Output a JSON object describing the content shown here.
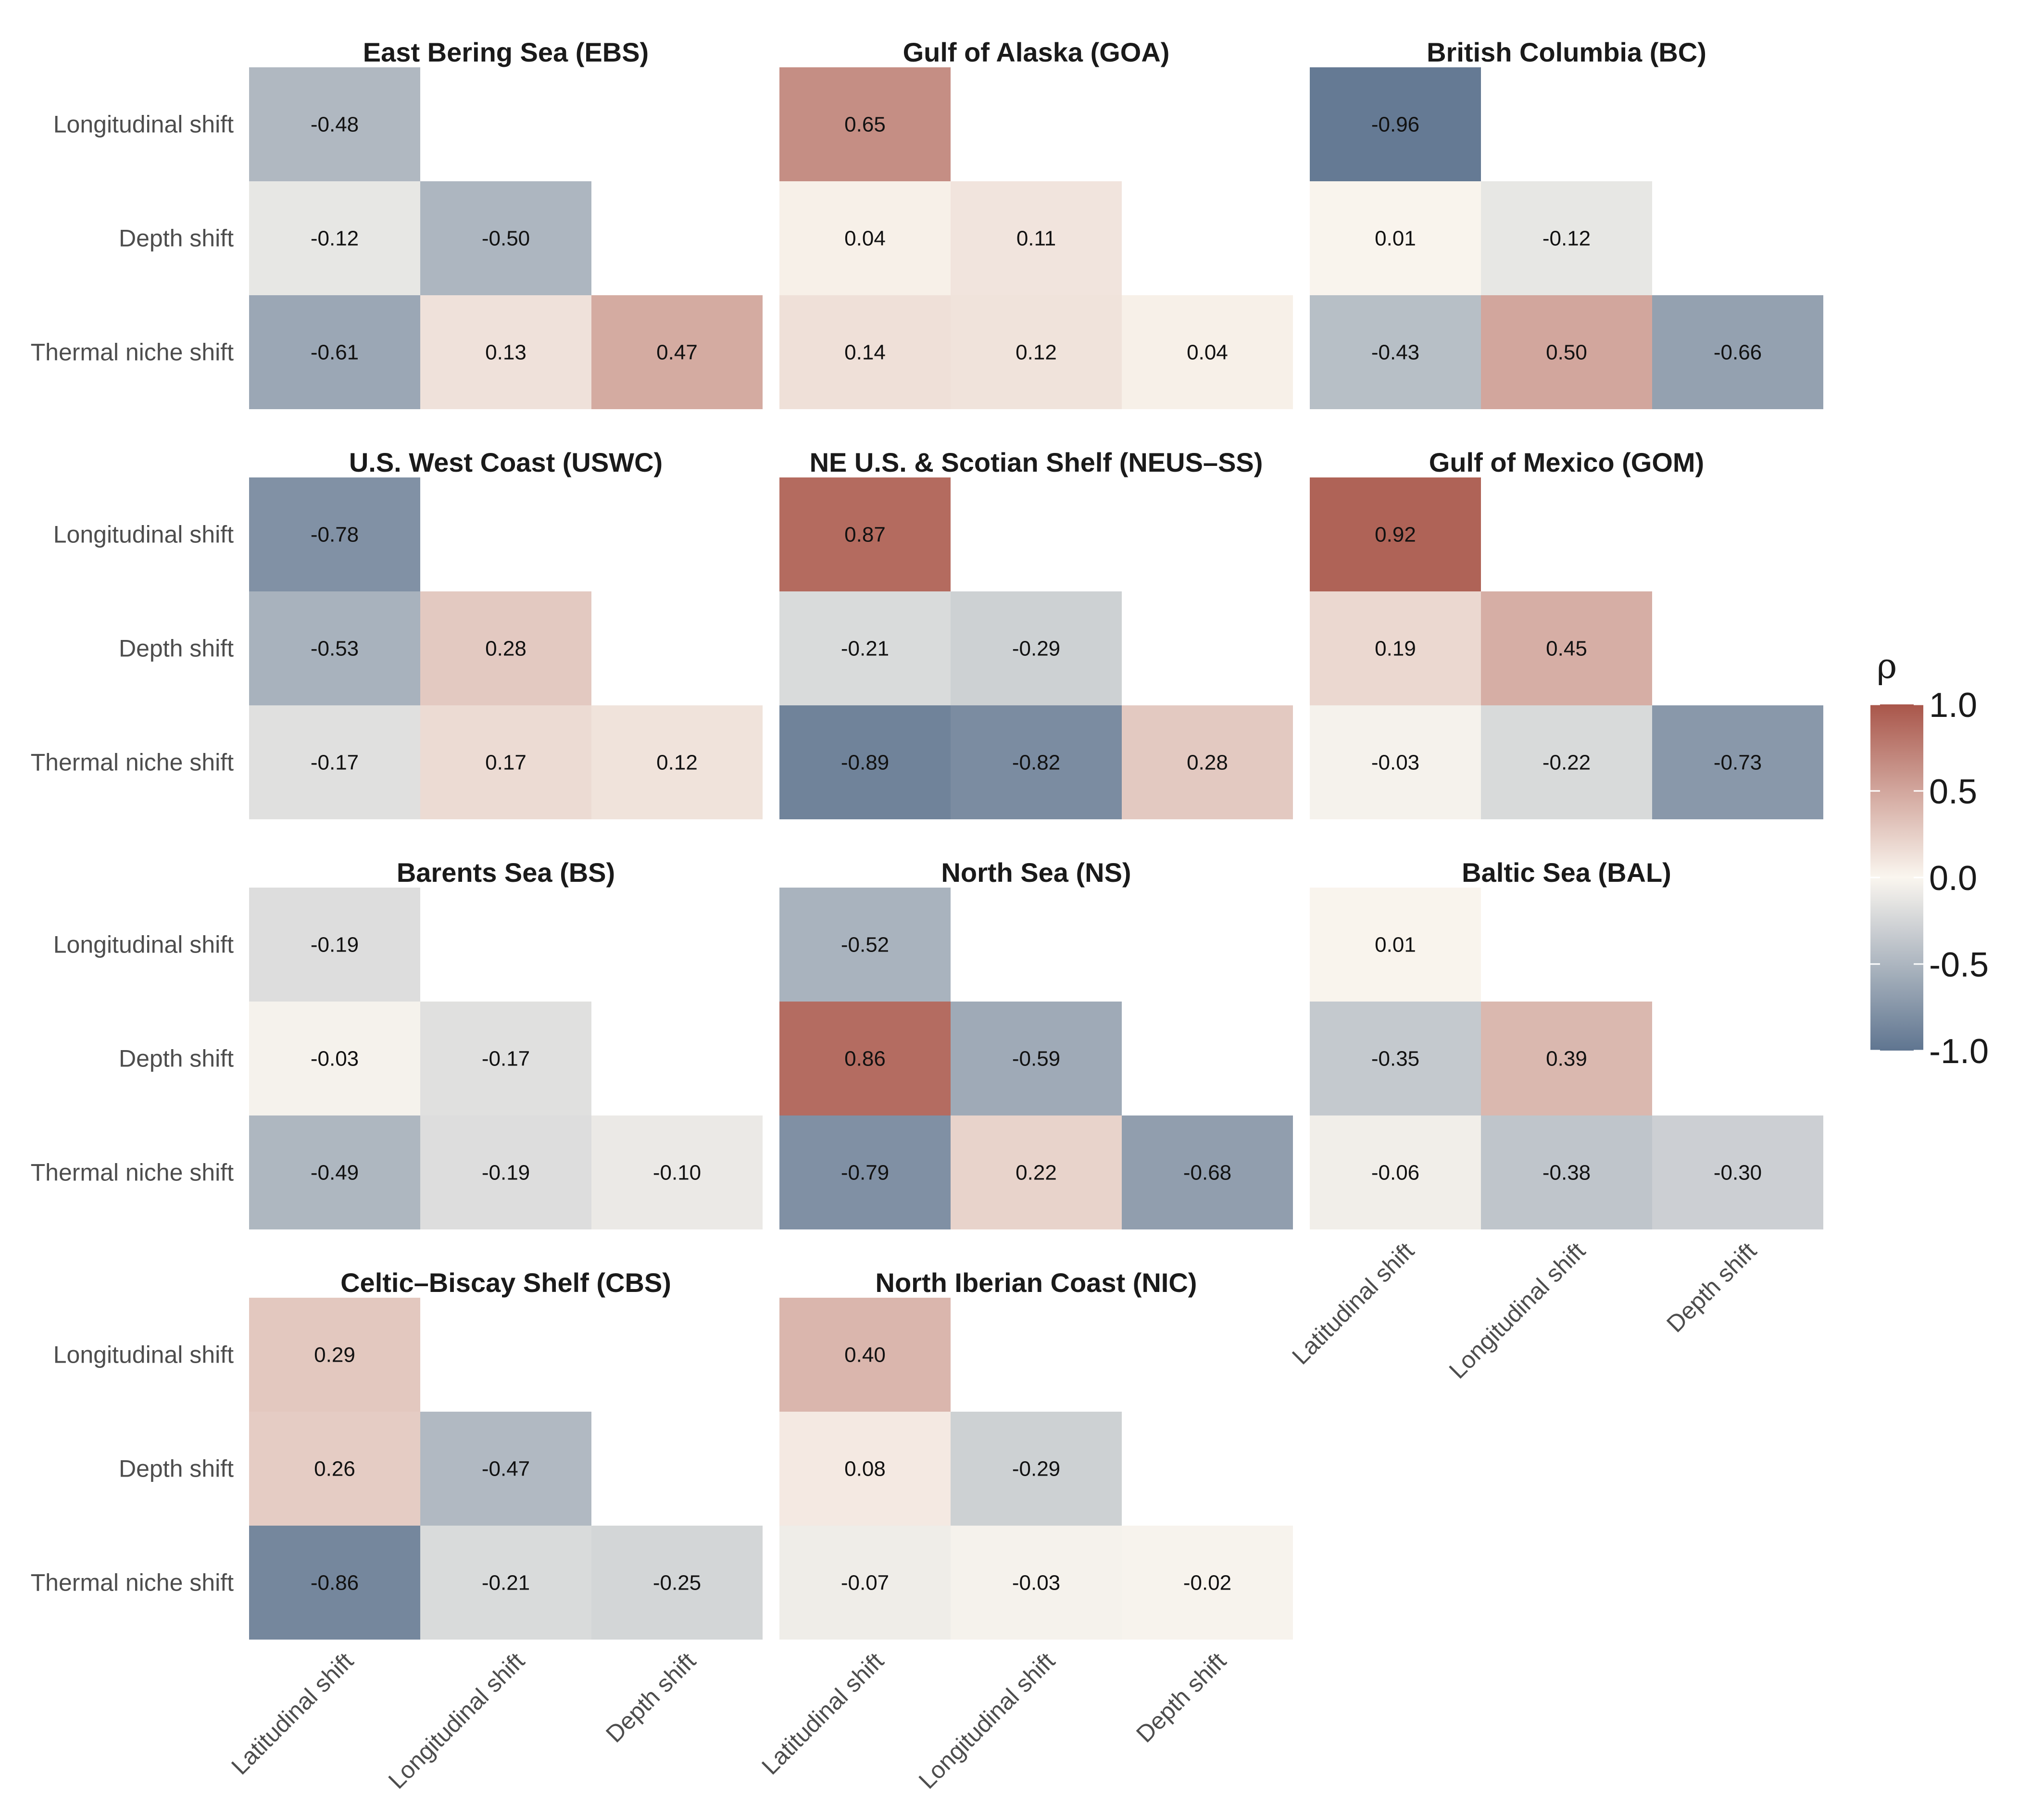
{
  "chart_data": {
    "type": "heatmap",
    "colorscale": {
      "low": "#5f7590",
      "mid": "#faf6ef",
      "high": "#a9564a",
      "range": [
        -1.0,
        1.0
      ]
    },
    "row_labels": [
      "Longitudinal shift",
      "Depth shift",
      "Thermal niche shift"
    ],
    "column_labels": [
      "Latitudinal shift",
      "Longitudinal shift",
      "Depth shift"
    ],
    "legend": {
      "title": "ρ",
      "ticks": [
        "1.0",
        "0.5",
        "0.0",
        "-0.5",
        "-1.0"
      ],
      "tick_values": [
        1.0,
        0.5,
        0.0,
        -0.5,
        -1.0
      ],
      "placement": "right"
    },
    "panels": [
      {
        "title": "East Bering Sea (EBS)",
        "values": [
          [
            -0.48
          ],
          [
            -0.12,
            -0.5
          ],
          [
            -0.61,
            0.13,
            0.47
          ]
        ],
        "labels": [
          [
            "-0.48"
          ],
          [
            "-0.12",
            "-0.50"
          ],
          [
            "-0.61",
            "0.13",
            "0.47"
          ]
        ]
      },
      {
        "title": "Gulf of Alaska (GOA)",
        "values": [
          [
            0.65
          ],
          [
            0.04,
            0.11
          ],
          [
            0.14,
            0.12,
            0.04
          ]
        ],
        "labels": [
          [
            "0.65"
          ],
          [
            "0.04",
            "0.11"
          ],
          [
            "0.14",
            "0.12",
            "0.04"
          ]
        ]
      },
      {
        "title": "British Columbia (BC)",
        "values": [
          [
            -0.96
          ],
          [
            0.01,
            -0.12
          ],
          [
            -0.43,
            0.5,
            -0.66
          ]
        ],
        "labels": [
          [
            "-0.96"
          ],
          [
            "0.01",
            "-0.12"
          ],
          [
            "-0.43",
            "0.50",
            "-0.66"
          ]
        ]
      },
      {
        "title": "U.S. West Coast (USWC)",
        "values": [
          [
            -0.78
          ],
          [
            -0.53,
            0.28
          ],
          [
            -0.17,
            0.17,
            0.12
          ]
        ],
        "labels": [
          [
            "-0.78"
          ],
          [
            "-0.53",
            "0.28"
          ],
          [
            "-0.17",
            "0.17",
            "0.12"
          ]
        ]
      },
      {
        "title": "NE U.S. & Scotian Shelf (NEUS–SS)",
        "values": [
          [
            0.87
          ],
          [
            -0.21,
            -0.29
          ],
          [
            -0.89,
            -0.82,
            0.28
          ]
        ],
        "labels": [
          [
            "0.87"
          ],
          [
            "-0.21",
            "-0.29"
          ],
          [
            "-0.89",
            "-0.82",
            "0.28"
          ]
        ]
      },
      {
        "title": "Gulf of Mexico (GOM)",
        "values": [
          [
            0.92
          ],
          [
            0.19,
            0.45
          ],
          [
            -0.03,
            -0.22,
            -0.73
          ]
        ],
        "labels": [
          [
            "0.92"
          ],
          [
            "0.19",
            "0.45"
          ],
          [
            "-0.03",
            "-0.22",
            "-0.73"
          ]
        ]
      },
      {
        "title": "Barents Sea (BS)",
        "values": [
          [
            -0.19
          ],
          [
            -0.03,
            -0.17
          ],
          [
            -0.49,
            -0.19,
            -0.1
          ]
        ],
        "labels": [
          [
            "-0.19"
          ],
          [
            "-0.03",
            "-0.17"
          ],
          [
            "-0.49",
            "-0.19",
            "-0.10"
          ]
        ]
      },
      {
        "title": "North Sea (NS)",
        "values": [
          [
            -0.52
          ],
          [
            0.86,
            -0.59
          ],
          [
            -0.79,
            0.22,
            -0.68
          ]
        ],
        "labels": [
          [
            "-0.52"
          ],
          [
            "0.86",
            "-0.59"
          ],
          [
            "-0.79",
            "0.22",
            "-0.68"
          ]
        ]
      },
      {
        "title": "Baltic Sea (BAL)",
        "values": [
          [
            0.01
          ],
          [
            -0.35,
            0.39
          ],
          [
            -0.06,
            -0.38,
            -0.3
          ]
        ],
        "labels": [
          [
            "0.01"
          ],
          [
            "-0.35",
            "0.39"
          ],
          [
            "-0.06",
            "-0.38",
            "-0.30"
          ]
        ]
      },
      {
        "title": "Celtic–Biscay Shelf (CBS)",
        "values": [
          [
            0.29
          ],
          [
            0.26,
            -0.47
          ],
          [
            -0.86,
            -0.21,
            -0.25
          ]
        ],
        "labels": [
          [
            "0.29"
          ],
          [
            "0.26",
            "-0.47"
          ],
          [
            "-0.86",
            "-0.21",
            "-0.25"
          ]
        ]
      },
      {
        "title": "North Iberian Coast (NIC)",
        "values": [
          [
            0.4
          ],
          [
            0.08,
            -0.29
          ],
          [
            -0.07,
            -0.03,
            -0.02
          ]
        ],
        "labels": [
          [
            "0.40"
          ],
          [
            "0.08",
            "-0.29"
          ],
          [
            "-0.07",
            "-0.03",
            "-0.02"
          ]
        ]
      }
    ]
  }
}
